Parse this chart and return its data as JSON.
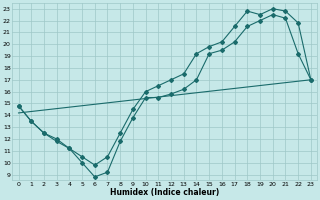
{
  "xlabel": "Humidex (Indice chaleur)",
  "bg_color": "#c6e8e8",
  "grid_color": "#9ec8c8",
  "line_color": "#1a6b6b",
  "xlim": [
    -0.5,
    23.5
  ],
  "ylim": [
    8.5,
    23.5
  ],
  "xticks": [
    0,
    1,
    2,
    3,
    4,
    5,
    6,
    7,
    8,
    9,
    10,
    11,
    12,
    13,
    14,
    15,
    16,
    17,
    18,
    19,
    20,
    21,
    22,
    23
  ],
  "yticks": [
    9,
    10,
    11,
    12,
    13,
    14,
    15,
    16,
    17,
    18,
    19,
    20,
    21,
    22,
    23
  ],
  "series1_x": [
    0,
    1,
    2,
    3,
    4,
    5,
    6,
    7,
    8,
    9,
    10,
    11,
    12,
    13,
    14,
    15,
    16,
    17,
    18,
    19,
    20,
    21,
    22,
    23
  ],
  "series1_y": [
    14.8,
    13.5,
    12.5,
    12.0,
    11.2,
    10.0,
    8.8,
    9.2,
    11.8,
    13.8,
    15.5,
    15.5,
    15.8,
    16.2,
    17.0,
    19.2,
    19.5,
    20.2,
    21.5,
    22.0,
    22.5,
    22.2,
    19.2,
    17.0
  ],
  "series2_x": [
    0,
    1,
    2,
    3,
    4,
    5,
    6,
    7,
    8,
    9,
    10,
    11,
    12,
    13,
    14,
    15,
    16,
    17,
    18,
    19,
    20,
    21,
    22,
    23
  ],
  "series2_y": [
    14.8,
    13.5,
    12.5,
    11.8,
    11.2,
    10.5,
    9.8,
    10.5,
    12.5,
    14.5,
    16.0,
    16.5,
    17.0,
    17.5,
    19.2,
    19.8,
    20.2,
    21.5,
    22.8,
    22.5,
    23.0,
    22.8,
    21.8,
    17.0
  ],
  "series3_x": [
    0,
    23
  ],
  "series3_y": [
    14.2,
    17.0
  ]
}
